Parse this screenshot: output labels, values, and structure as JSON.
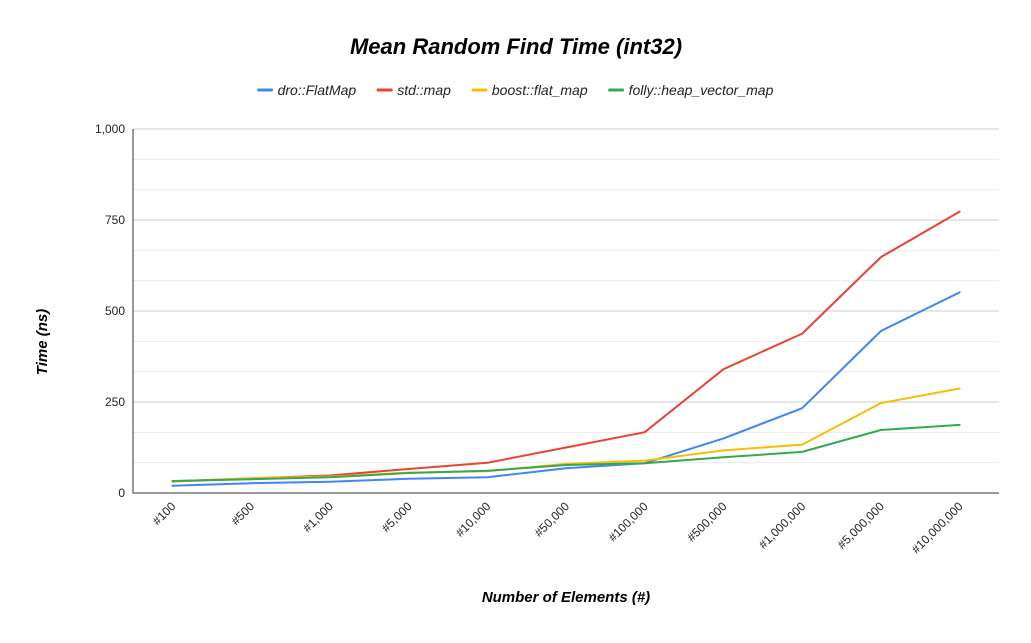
{
  "chart_data": {
    "type": "line",
    "title": "Mean Random Find Time (int32)",
    "xlabel": "Number of Elements (#)",
    "ylabel": "Time (ns)",
    "ylim": [
      0,
      1000
    ],
    "yticks": [
      0,
      250,
      500,
      750,
      1000
    ],
    "ytick_labels": [
      "0",
      "250",
      "500",
      "750",
      "1,000"
    ],
    "grid": true,
    "legend_position": "top",
    "categories": [
      "#100",
      "#500",
      "#1,000",
      "#5,000",
      "#10,000",
      "#50,000",
      "#100,000",
      "#500,000",
      "#1,000,000",
      "#5,000,000",
      "#10,000,000"
    ],
    "series": [
      {
        "name": "dro::FlatMap",
        "color": "#4285f4",
        "values": [
          20,
          27,
          31,
          39,
          43,
          68,
          82,
          150,
          233,
          445,
          551
        ]
      },
      {
        "name": "std::map",
        "color": "#ea4335",
        "values": [
          32,
          40,
          48,
          66,
          83,
          125,
          167,
          340,
          438,
          648,
          773
        ]
      },
      {
        "name": "boost::flat_map",
        "color": "#fbbc04",
        "values": [
          31,
          41,
          45,
          56,
          60,
          80,
          89,
          117,
          133,
          247,
          287
        ]
      },
      {
        "name": "folly::heap_vector_map",
        "color": "#34a853",
        "values": [
          33,
          38,
          43,
          55,
          61,
          77,
          82,
          98,
          113,
          173,
          187
        ]
      }
    ]
  }
}
